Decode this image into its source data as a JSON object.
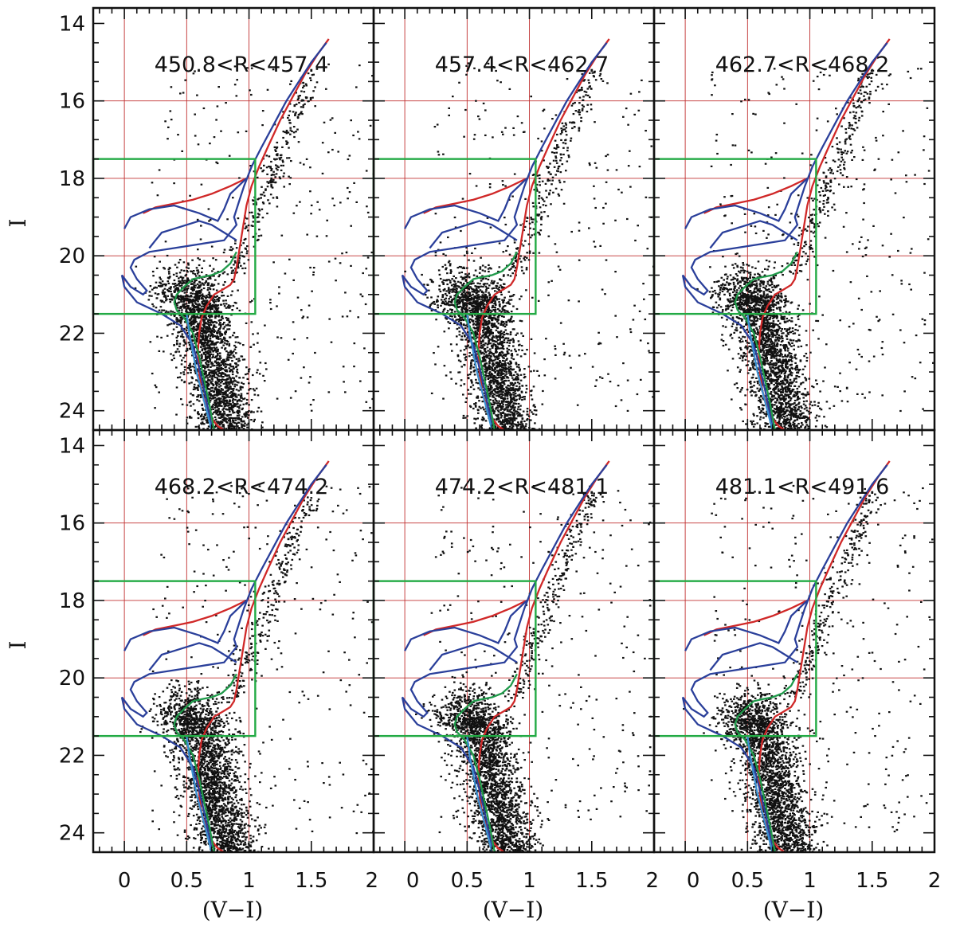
{
  "chart_data": {
    "type": "scatter",
    "description_axes": {
      "xlabel": "(V−I)",
      "ylabel": "I"
    },
    "xlim": [
      -0.25,
      2.0
    ],
    "ylim": [
      24.5,
      13.6
    ],
    "y_inverted": true,
    "x_ticks": [
      0,
      0.5,
      1,
      1.5,
      2
    ],
    "x_tick_labels": [
      "0",
      "0.5",
      "1",
      "1.5",
      "2"
    ],
    "y_ticks": [
      14,
      16,
      18,
      20,
      22,
      24
    ],
    "y_tick_labels": [
      "14",
      "16",
      "18",
      "20",
      "22",
      "24"
    ],
    "grid": {
      "x": [
        0,
        0.5,
        1
      ],
      "y": [
        16,
        18,
        20
      ],
      "color": "#c03030"
    },
    "selection_box": {
      "x": [
        -0.25,
        1.05
      ],
      "y": [
        17.5,
        21.5
      ],
      "color": "#22aa44"
    },
    "colors": {
      "points": "#111111",
      "red_isochrone": "#d02828",
      "blue_isochrone": "#2a3f9a",
      "green_isochrone": "#1f9a4a",
      "light_blue_isochrone": "#3a8fd0"
    },
    "panels": [
      {
        "label": "450.8<R<457.4"
      },
      {
        "label": "457.4<R<462.7"
      },
      {
        "label": "462.7<R<468.2"
      },
      {
        "label": "468.2<R<474.2"
      },
      {
        "label": "474.2<R<481.1"
      },
      {
        "label": "481.1<R<491.6"
      }
    ],
    "series": [
      {
        "color": "red",
        "x": [
          1.64,
          1.55,
          1.45,
          1.35,
          1.25,
          1.15,
          1.08,
          1.02,
          0.98,
          0.95,
          0.92,
          0.9,
          0.88,
          0.85,
          0.8,
          0.72,
          0.66,
          0.62,
          0.6,
          0.59,
          0.6,
          0.62,
          0.66,
          0.7,
          0.75,
          0.8
        ],
        "y": [
          14.4,
          14.8,
          15.3,
          15.9,
          16.5,
          17.2,
          17.7,
          18.2,
          18.7,
          19.3,
          19.9,
          20.3,
          20.6,
          20.75,
          20.85,
          21.0,
          21.3,
          21.6,
          22.0,
          22.5,
          23.0,
          23.5,
          23.9,
          24.2,
          24.4,
          24.5
        ]
      },
      {
        "color": "red",
        "x": [
          0.98,
          0.85,
          0.7,
          0.55,
          0.4,
          0.25,
          0.15
        ],
        "y": [
          18.0,
          18.2,
          18.4,
          18.55,
          18.65,
          18.75,
          18.9
        ]
      },
      {
        "color": "blue",
        "x": [
          1.62,
          1.5,
          1.4,
          1.3,
          1.2,
          1.1,
          1.02,
          0.96,
          0.92,
          0.88,
          0.9,
          0.8,
          0.6,
          0.4,
          0.2,
          0.08,
          0.05,
          0.1,
          0.18,
          0.15,
          0.05,
          -0.02,
          0.0,
          0.1,
          0.3,
          0.45,
          0.55,
          0.6,
          0.65,
          0.7
        ],
        "y": [
          14.5,
          15.0,
          15.5,
          16.0,
          16.6,
          17.2,
          17.7,
          18.2,
          18.6,
          19.0,
          19.2,
          19.6,
          19.7,
          19.8,
          19.9,
          20.1,
          20.3,
          20.6,
          20.9,
          21.0,
          20.8,
          20.5,
          20.8,
          21.2,
          21.5,
          21.8,
          22.3,
          22.9,
          23.6,
          24.4
        ]
      },
      {
        "color": "blue",
        "x": [
          0.98,
          0.85,
          0.8,
          0.75,
          0.6,
          0.4,
          0.2,
          0.05,
          0.0
        ],
        "y": [
          18.0,
          18.4,
          18.8,
          19.1,
          18.9,
          18.7,
          18.8,
          19.0,
          19.3
        ]
      },
      {
        "color": "blue",
        "x": [
          0.9,
          0.8,
          0.7,
          0.6,
          0.5,
          0.4,
          0.3,
          0.25,
          0.2
        ],
        "y": [
          19.6,
          19.4,
          19.2,
          19.1,
          19.2,
          19.3,
          19.4,
          19.6,
          19.8
        ]
      },
      {
        "color": "green",
        "x": [
          0.9,
          0.85,
          0.78,
          0.7,
          0.62,
          0.55,
          0.48,
          0.42,
          0.4,
          0.42,
          0.48,
          0.55,
          0.6,
          0.64,
          0.68,
          0.72
        ],
        "y": [
          19.9,
          20.2,
          20.4,
          20.5,
          20.55,
          20.6,
          20.8,
          21.0,
          21.2,
          21.4,
          21.6,
          22.0,
          22.6,
          23.2,
          23.8,
          24.5
        ]
      },
      {
        "color": "light-blue",
        "x": [
          0.5,
          0.52,
          0.55,
          0.58,
          0.62,
          0.66,
          0.7
        ],
        "y": [
          21.5,
          22.0,
          22.5,
          23.0,
          23.5,
          24.0,
          24.5
        ]
      }
    ]
  }
}
